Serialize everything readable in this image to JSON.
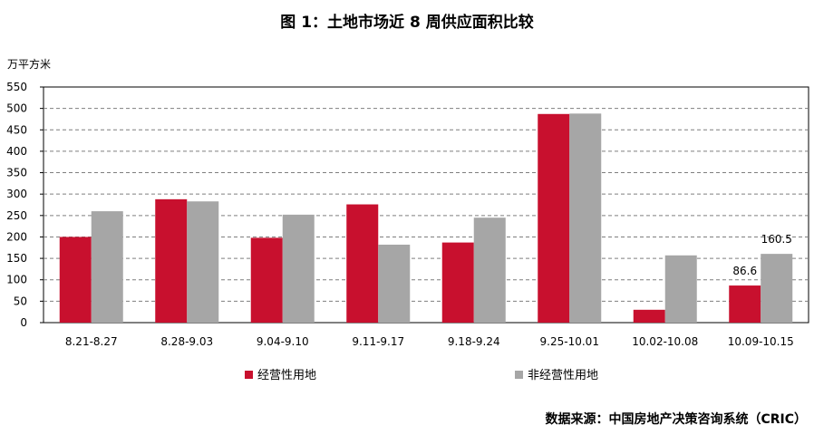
{
  "chart_data": {
    "type": "bar",
    "title": "图 1：土地市场近 8 周供应面积比较",
    "ylabel": "万平方米",
    "xlabel": "",
    "ylim": [
      0,
      550
    ],
    "yticks": [
      0,
      50,
      100,
      150,
      200,
      250,
      300,
      350,
      400,
      450,
      500,
      550
    ],
    "grid": true,
    "legend_position": "bottom",
    "categories": [
      "8.21-8.27",
      "8.28-9.03",
      "9.04-9.10",
      "9.11-9.17",
      "9.18-9.24",
      "9.25-10.01",
      "10.02-10.08",
      "10.09-10.15"
    ],
    "series": [
      {
        "name": "经营性用地",
        "color": "#c8102e",
        "values": [
          200,
          288,
          198,
          276,
          187,
          487,
          30,
          86.6
        ]
      },
      {
        "name": "非经营性用地",
        "color": "#a6a6a6",
        "values": [
          260,
          283,
          252,
          182,
          245,
          488,
          157,
          160.5
        ]
      }
    ],
    "data_labels": [
      {
        "series": 0,
        "index": 7,
        "text": "86.6"
      },
      {
        "series": 1,
        "index": 7,
        "text": "160.5"
      }
    ],
    "source": "数据来源：中国房地产决策咨询系统（CRIC）"
  }
}
